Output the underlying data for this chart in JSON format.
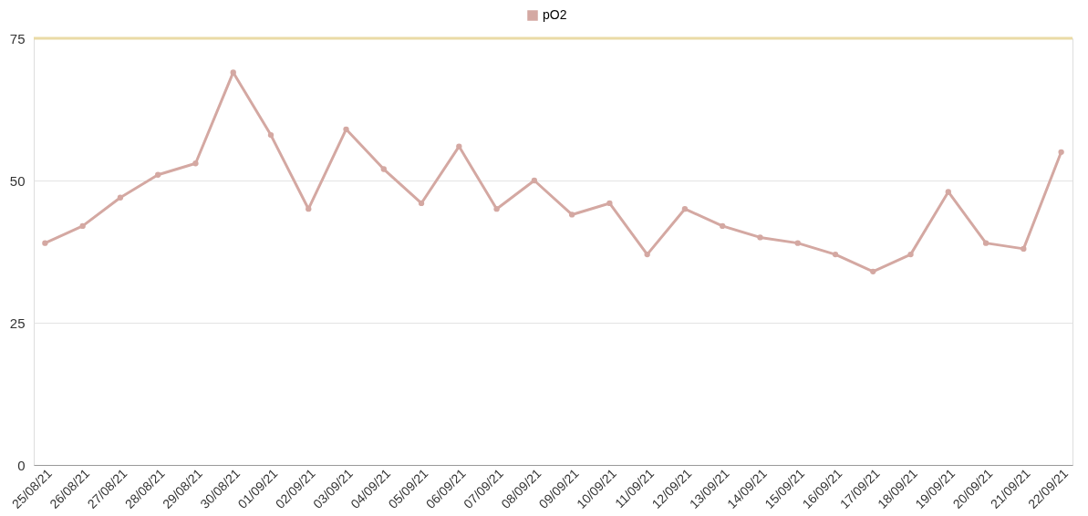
{
  "chart_data": {
    "type": "line",
    "categories": [
      "25/08/21",
      "26/08/21",
      "27/08/21",
      "28/08/21",
      "29/08/21",
      "30/08/21",
      "01/09/21",
      "02/09/21",
      "03/09/21",
      "04/09/21",
      "05/09/21",
      "06/09/21",
      "07/09/21",
      "08/09/21",
      "09/09/21",
      "10/09/21",
      "11/09/21",
      "12/09/21",
      "13/09/21",
      "14/09/21",
      "15/09/21",
      "16/09/21",
      "17/09/21",
      "18/09/21",
      "19/09/21",
      "20/09/21",
      "21/09/21",
      "22/09/21"
    ],
    "series": [
      {
        "name": "pO2",
        "color": "#d4a8a2",
        "values": [
          39,
          42,
          47,
          51,
          53,
          69,
          58,
          45,
          59,
          52,
          46,
          56,
          45,
          50,
          44,
          46,
          37,
          45,
          42,
          40,
          39,
          37,
          34,
          37,
          48,
          39,
          38,
          55
        ]
      }
    ],
    "ylim": [
      0,
      75
    ],
    "yticks": [
      0,
      25,
      50,
      75
    ],
    "ref_lines": [
      {
        "axis": "y",
        "value": 75,
        "color": "#eadba6"
      }
    ],
    "grid": "y",
    "legend": "top",
    "marker": "circle",
    "line_style": "solid"
  }
}
